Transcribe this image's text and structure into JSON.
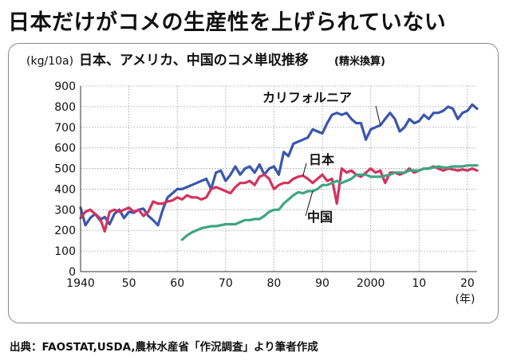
{
  "headline": "日本だけがコメの生産性を上げられていない",
  "source": "出典：FAOSTAT,USDA,農林水産省「作況調査」より筆者作成",
  "chart_data": {
    "type": "line",
    "title": "日本、アメリカ、中国のコメ単収推移",
    "title_note": "(精米換算)",
    "ylabel": "(kg/10a)",
    "xlabel_unit": "(年)",
    "ylim": [
      0,
      900
    ],
    "xlim": [
      1940,
      2022
    ],
    "yticks": [
      0,
      100,
      200,
      300,
      400,
      500,
      600,
      700,
      800,
      900
    ],
    "xticks": [
      1940,
      1950,
      1960,
      1970,
      1980,
      1990,
      2000,
      2010,
      2020
    ],
    "xtick_labels": [
      "1940",
      "50",
      "60",
      "70",
      "80",
      "90",
      "2000",
      "10",
      "20"
    ],
    "grid": true,
    "series": [
      {
        "name": "カリフォルニア",
        "color": "#3a56b0",
        "x": [
          1940,
          1941,
          1942,
          1943,
          1944,
          1945,
          1946,
          1947,
          1948,
          1949,
          1950,
          1951,
          1952,
          1953,
          1954,
          1955,
          1956,
          1957,
          1958,
          1959,
          1960,
          1961,
          1962,
          1963,
          1964,
          1965,
          1966,
          1967,
          1968,
          1969,
          1970,
          1971,
          1972,
          1973,
          1974,
          1975,
          1976,
          1977,
          1978,
          1979,
          1980,
          1981,
          1982,
          1983,
          1984,
          1985,
          1986,
          1987,
          1988,
          1989,
          1990,
          1991,
          1992,
          1993,
          1994,
          1995,
          1996,
          1997,
          1998,
          1999,
          2000,
          2001,
          2002,
          2003,
          2004,
          2005,
          2006,
          2007,
          2008,
          2009,
          2010,
          2011,
          2012,
          2013,
          2014,
          2015,
          2016,
          2017,
          2018,
          2019,
          2020,
          2021,
          2022
        ],
        "values": [
          310,
          225,
          260,
          280,
          250,
          265,
          230,
          280,
          300,
          260,
          290,
          285,
          300,
          305,
          270,
          250,
          225,
          300,
          360,
          380,
          400,
          400,
          410,
          420,
          430,
          440,
          450,
          400,
          480,
          490,
          440,
          470,
          510,
          470,
          500,
          510,
          480,
          520,
          470,
          500,
          510,
          470,
          580,
          560,
          620,
          630,
          640,
          650,
          690,
          680,
          670,
          720,
          760,
          770,
          760,
          770,
          740,
          720,
          720,
          640,
          690,
          700,
          710,
          740,
          770,
          740,
          680,
          700,
          740,
          720,
          730,
          760,
          740,
          770,
          770,
          780,
          800,
          790,
          740,
          770,
          780,
          810,
          790
        ]
      },
      {
        "name": "日本",
        "color": "#d3335e",
        "x": [
          1940,
          1941,
          1942,
          1943,
          1944,
          1945,
          1946,
          1947,
          1948,
          1949,
          1950,
          1951,
          1952,
          1953,
          1954,
          1955,
          1956,
          1957,
          1958,
          1959,
          1960,
          1961,
          1962,
          1963,
          1964,
          1965,
          1966,
          1967,
          1968,
          1969,
          1970,
          1971,
          1972,
          1973,
          1974,
          1975,
          1976,
          1977,
          1978,
          1979,
          1980,
          1981,
          1982,
          1983,
          1984,
          1985,
          1986,
          1987,
          1988,
          1989,
          1990,
          1991,
          1992,
          1993,
          1994,
          1995,
          1996,
          1997,
          1998,
          1999,
          2000,
          2001,
          2002,
          2003,
          2004,
          2005,
          2006,
          2007,
          2008,
          2009,
          2010,
          2011,
          2012,
          2013,
          2014,
          2015,
          2016,
          2017,
          2018,
          2019,
          2020,
          2021,
          2022
        ],
        "values": [
          260,
          290,
          300,
          280,
          260,
          195,
          290,
          300,
          290,
          300,
          310,
          290,
          300,
          270,
          290,
          340,
          330,
          330,
          340,
          345,
          360,
          350,
          370,
          360,
          360,
          350,
          360,
          400,
          410,
          400,
          390,
          380,
          410,
          430,
          430,
          440,
          420,
          460,
          470,
          450,
          400,
          420,
          430,
          430,
          450,
          460,
          465,
          450,
          430,
          450,
          470,
          440,
          450,
          330,
          500,
          480,
          490,
          470,
          460,
          480,
          500,
          480,
          490,
          430,
          480,
          480,
          470,
          480,
          500,
          480,
          490,
          500,
          500,
          510,
          500,
          490,
          500,
          495,
          490,
          495,
          490,
          500,
          490
        ]
      },
      {
        "name": "中国",
        "color": "#3fa582",
        "x": [
          1961,
          1962,
          1963,
          1964,
          1965,
          1966,
          1967,
          1968,
          1969,
          1970,
          1971,
          1972,
          1973,
          1974,
          1975,
          1976,
          1977,
          1978,
          1979,
          1980,
          1981,
          1982,
          1983,
          1984,
          1985,
          1986,
          1987,
          1988,
          1989,
          1990,
          1991,
          1992,
          1993,
          1994,
          1995,
          1996,
          1997,
          1998,
          1999,
          2000,
          2001,
          2002,
          2003,
          2004,
          2005,
          2006,
          2007,
          2008,
          2009,
          2010,
          2011,
          2012,
          2013,
          2014,
          2015,
          2016,
          2017,
          2018,
          2019,
          2020,
          2021,
          2022
        ],
        "values": [
          155,
          175,
          190,
          200,
          210,
          215,
          220,
          220,
          225,
          230,
          230,
          230,
          240,
          250,
          250,
          255,
          255,
          270,
          290,
          300,
          300,
          330,
          350,
          370,
          385,
          380,
          390,
          390,
          400,
          420,
          420,
          430,
          440,
          430,
          440,
          450,
          470,
          470,
          470,
          460,
          460,
          460,
          465,
          470,
          480,
          480,
          480,
          490,
          490,
          490,
          500,
          500,
          505,
          510,
          505,
          505,
          510,
          510,
          510,
          515,
          515,
          515
        ]
      }
    ],
    "annotations": [
      {
        "text": "カリフォルニア",
        "series": "カリフォルニア"
      },
      {
        "text": "日本",
        "series": "日本"
      },
      {
        "text": "中国",
        "series": "中国"
      }
    ]
  }
}
